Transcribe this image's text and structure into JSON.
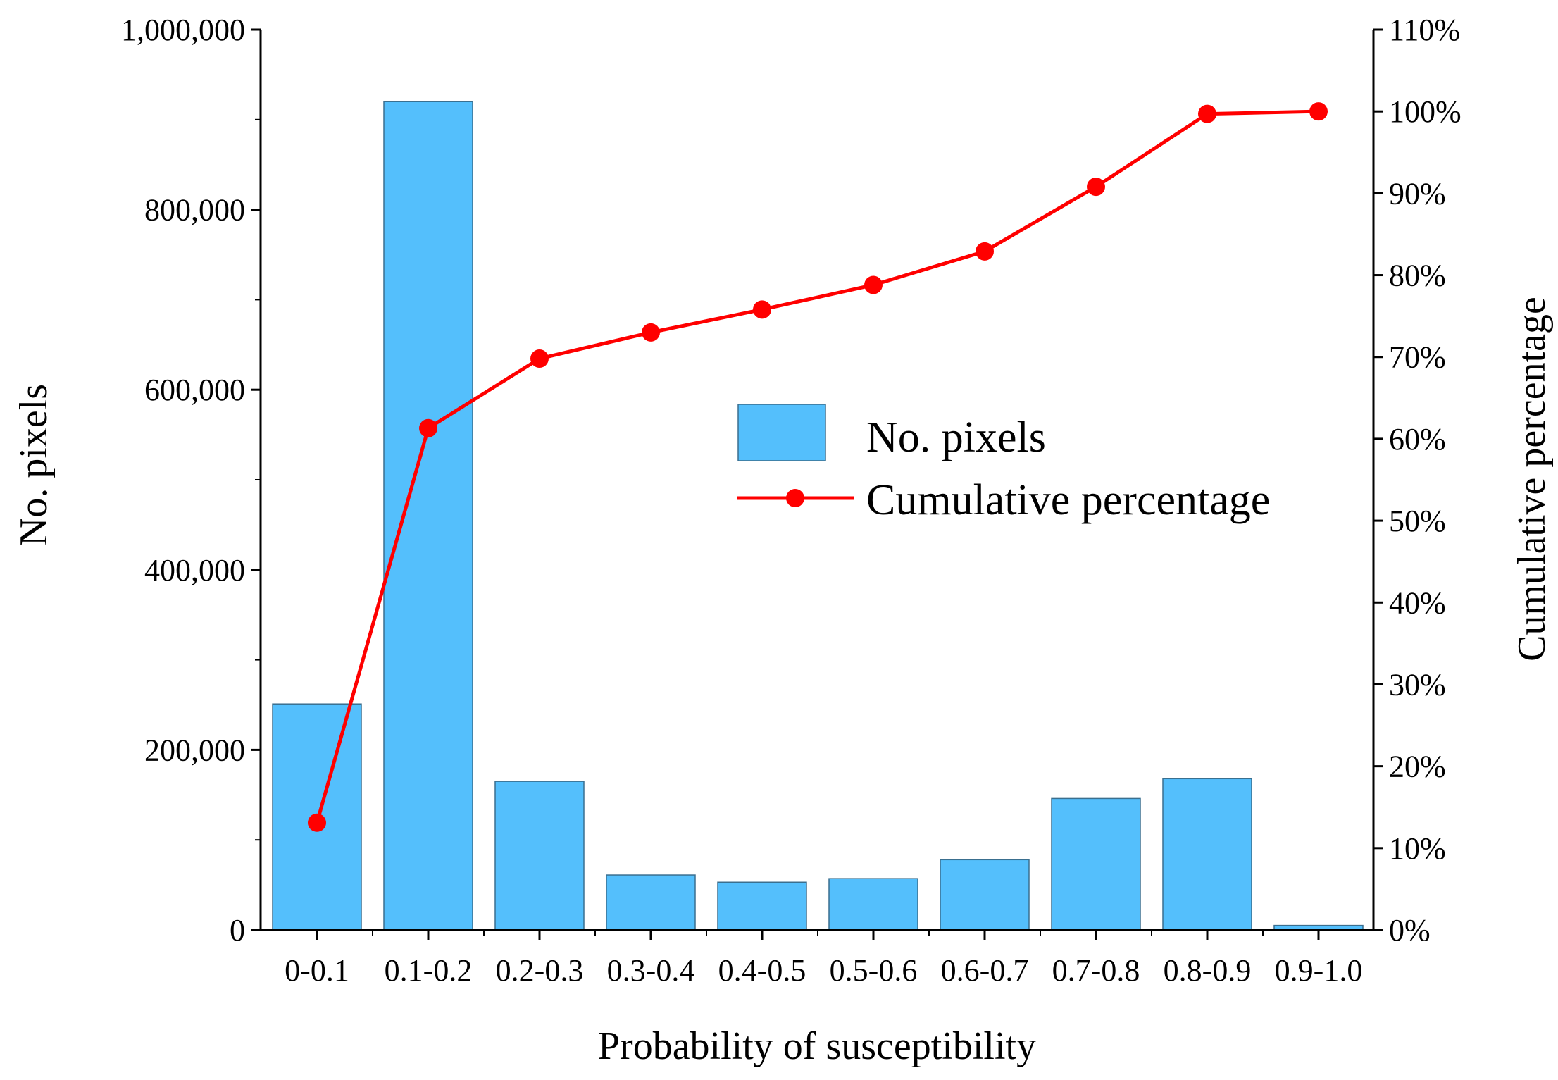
{
  "chart_data": {
    "type": "bar",
    "title": "",
    "xlabel": "Probability of susceptibility",
    "ylabel": "No. pixels",
    "y2label": "Cumulative percentage",
    "categories": [
      "0-0.1",
      "0.1-0.2",
      "0.2-0.3",
      "0.3-0.4",
      "0.4-0.5",
      "0.5-0.6",
      "0.6-0.7",
      "0.7-0.8",
      "0.8-0.9",
      "0.9-1.0"
    ],
    "ylim": [
      0,
      1000000
    ],
    "y2lim": [
      0,
      110
    ],
    "yticks": [
      0,
      200000,
      400000,
      600000,
      800000,
      1000000
    ],
    "ytick_labels": [
      "0",
      "200,000",
      "400,000",
      "600,000",
      "800,000",
      "1,000,000"
    ],
    "y2ticks": [
      0,
      10,
      20,
      30,
      40,
      50,
      60,
      70,
      80,
      90,
      100,
      110
    ],
    "y2tick_labels": [
      "0%",
      "10%",
      "20%",
      "30%",
      "40%",
      "50%",
      "60%",
      "70%",
      "80%",
      "90%",
      "100%",
      "110%"
    ],
    "series": [
      {
        "name": "No. pixels",
        "type": "bar",
        "axis": "left",
        "color": "#54bffc",
        "values": [
          251000,
          920000,
          165000,
          61000,
          53000,
          57000,
          78000,
          146000,
          168000,
          5000
        ]
      },
      {
        "name": "Cumulative percentage",
        "type": "line",
        "axis": "right",
        "color": "#ff0000",
        "values": [
          13.1,
          61.3,
          69.8,
          73.0,
          75.8,
          78.8,
          82.9,
          90.8,
          99.7,
          100.0
        ]
      }
    ],
    "legend": {
      "position": "center-right",
      "entries": [
        "No. pixels",
        "Cumulative percentage"
      ]
    },
    "grid": false
  }
}
